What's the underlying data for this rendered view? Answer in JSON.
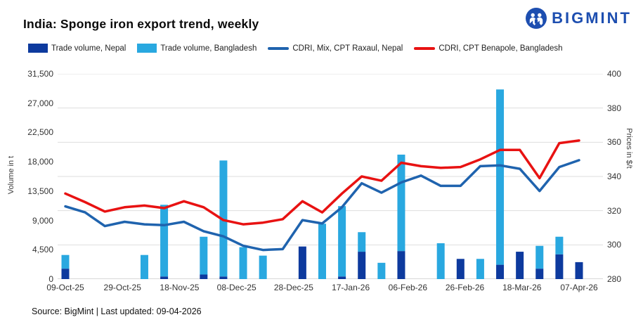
{
  "header": {
    "title": "India: Sponge iron export trend, weekly",
    "logo_text": "BIGMINT"
  },
  "legend": {
    "items": [
      {
        "label": "Trade volume, Nepal",
        "marker": "square",
        "color": "#0d3a9e"
      },
      {
        "label": "Trade volume, Bangladesh",
        "marker": "square",
        "color": "#29a8e0"
      },
      {
        "label": "CDRI, Mix, CPT Raxaul, Nepal",
        "marker": "line",
        "color": "#1f63ae"
      },
      {
        "label": "CDRI, CPT Benapole, Bangladesh",
        "marker": "line",
        "color": "#e81212"
      }
    ]
  },
  "footer": {
    "source": "Source: BigMint | Last updated: 09-04-2026"
  },
  "chart_data": {
    "type": "combo (stacked bar + line, dual axis)",
    "x_frequency": "weekly",
    "n_points": 27,
    "x_tick_labels": [
      "09-Oct-25",
      "29-Oct-25",
      "18-Nov-25",
      "08-Dec-25",
      "28-Dec-25",
      "17-Jan-26",
      "06-Feb-26",
      "26-Feb-26",
      "18-Mar-26",
      "07-Apr-26"
    ],
    "grid": "horizontal gridlines at right-axis ticks",
    "legend_position": "top-left",
    "left_axis": {
      "title": "Volume in t",
      "min": 0,
      "max": 31500,
      "tick_values": [
        0,
        4500,
        9000,
        13500,
        18000,
        22500,
        27000,
        31500
      ],
      "tick_labels": [
        "0",
        "4,500",
        "9,000",
        "13,500",
        "18,000",
        "22,500",
        "27,000",
        "31,500"
      ]
    },
    "right_axis": {
      "title": "Prices in $/t",
      "min": 280,
      "max": 400,
      "tick_values": [
        280,
        300,
        320,
        340,
        360,
        380,
        400
      ],
      "tick_labels": [
        "280",
        "300",
        "320",
        "340",
        "360",
        "380",
        "400"
      ]
    },
    "series": [
      {
        "name": "Trade volume, Nepal",
        "type": "bar",
        "stack": "volume",
        "axis": "left",
        "color": "#0d3a9e",
        "values": [
          1600,
          0,
          0,
          0,
          0,
          400,
          0,
          700,
          400,
          0,
          0,
          0,
          5000,
          0,
          400,
          4200,
          0,
          4300,
          0,
          0,
          3100,
          0,
          2200,
          4200,
          1600,
          3800,
          2600
        ]
      },
      {
        "name": "Trade volume, Bangladesh",
        "type": "bar",
        "stack": "volume",
        "axis": "left",
        "color": "#29a8e0",
        "values": [
          2100,
          0,
          0,
          0,
          3700,
          11000,
          0,
          5800,
          17800,
          4900,
          3600,
          0,
          0,
          8500,
          10800,
          3000,
          2500,
          14800,
          0,
          5500,
          0,
          3100,
          26900,
          0,
          3500,
          2700,
          0
        ]
      },
      {
        "name": "CDRI, Mix, CPT Raxaul, Nepal",
        "type": "line",
        "axis": "right",
        "color": "#1f63ae",
        "values": [
          322.5,
          319,
          311,
          313.5,
          312,
          311.5,
          313.5,
          308,
          305,
          299.5,
          297,
          297.5,
          314.5,
          312.5,
          322,
          336,
          330.5,
          336.5,
          340.5,
          334.5,
          334.5,
          346,
          346.5,
          344.5,
          331.5,
          345.5,
          349.5
        ]
      },
      {
        "name": "CDRI, CPT Benapole, Bangladesh",
        "type": "line",
        "axis": "right",
        "color": "#e81212",
        "values": [
          330,
          325,
          319.5,
          322,
          323,
          321.5,
          325.5,
          322,
          314.5,
          312,
          313,
          315,
          325.5,
          319,
          330,
          340,
          337.5,
          348,
          346,
          345,
          345.5,
          350,
          355.5,
          355.5,
          339,
          359.5,
          361
        ]
      }
    ]
  }
}
